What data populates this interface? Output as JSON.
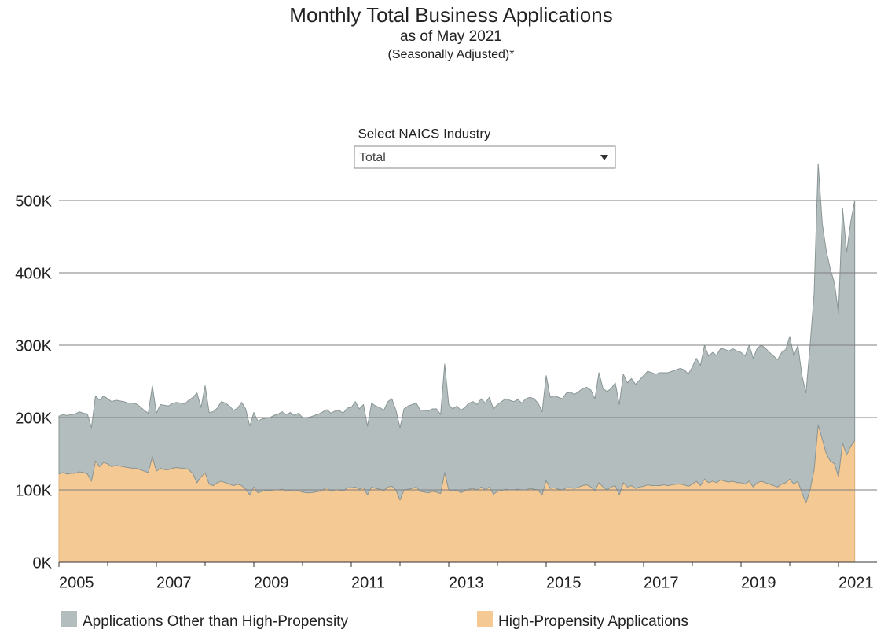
{
  "chart_data": {
    "type": "stacked_area",
    "title": "Monthly Total Business Applications",
    "subtitle": "as of May 2021",
    "note": "(Seasonally Adjusted)*",
    "filter_label": "Select NAICS Industry",
    "filter_value": "Total",
    "x": [
      2005,
      2005.083,
      2005.167,
      2005.25,
      2005.333,
      2005.417,
      2005.5,
      2005.583,
      2005.667,
      2005.75,
      2005.833,
      2005.917,
      2006,
      2006.083,
      2006.167,
      2006.25,
      2006.333,
      2006.417,
      2006.5,
      2006.583,
      2006.667,
      2006.75,
      2006.833,
      2006.917,
      2007,
      2007.083,
      2007.167,
      2007.25,
      2007.333,
      2007.417,
      2007.5,
      2007.583,
      2007.667,
      2007.75,
      2007.833,
      2007.917,
      2008,
      2008.083,
      2008.167,
      2008.25,
      2008.333,
      2008.417,
      2008.5,
      2008.583,
      2008.667,
      2008.75,
      2008.833,
      2008.917,
      2009,
      2009.083,
      2009.167,
      2009.25,
      2009.333,
      2009.417,
      2009.5,
      2009.583,
      2009.667,
      2009.75,
      2009.833,
      2009.917,
      2010,
      2010.083,
      2010.167,
      2010.25,
      2010.333,
      2010.417,
      2010.5,
      2010.583,
      2010.667,
      2010.75,
      2010.833,
      2010.917,
      2011,
      2011.083,
      2011.167,
      2011.25,
      2011.333,
      2011.417,
      2011.5,
      2011.583,
      2011.667,
      2011.75,
      2011.833,
      2011.917,
      2012,
      2012.083,
      2012.167,
      2012.25,
      2012.333,
      2012.417,
      2012.5,
      2012.583,
      2012.667,
      2012.75,
      2012.833,
      2012.917,
      2013,
      2013.083,
      2013.167,
      2013.25,
      2013.333,
      2013.417,
      2013.5,
      2013.583,
      2013.667,
      2013.75,
      2013.833,
      2013.917,
      2014,
      2014.083,
      2014.167,
      2014.25,
      2014.333,
      2014.417,
      2014.5,
      2014.583,
      2014.667,
      2014.75,
      2014.833,
      2014.917,
      2015,
      2015.083,
      2015.167,
      2015.25,
      2015.333,
      2015.417,
      2015.5,
      2015.583,
      2015.667,
      2015.75,
      2015.833,
      2015.917,
      2016,
      2016.083,
      2016.167,
      2016.25,
      2016.333,
      2016.417,
      2016.5,
      2016.583,
      2016.667,
      2016.75,
      2016.833,
      2016.917,
      2017,
      2017.083,
      2017.167,
      2017.25,
      2017.333,
      2017.417,
      2017.5,
      2017.583,
      2017.667,
      2017.75,
      2017.833,
      2017.917,
      2018,
      2018.083,
      2018.167,
      2018.25,
      2018.333,
      2018.417,
      2018.5,
      2018.583,
      2018.667,
      2018.75,
      2018.833,
      2018.917,
      2019,
      2019.083,
      2019.167,
      2019.25,
      2019.333,
      2019.417,
      2019.5,
      2019.583,
      2019.667,
      2019.75,
      2019.833,
      2019.917,
      2020,
      2020.083,
      2020.167,
      2020.25,
      2020.333,
      2020.417,
      2020.5,
      2020.583,
      2020.667,
      2020.75,
      2020.833,
      2020.917,
      2021,
      2021.083,
      2021.167,
      2021.25,
      2021.333
    ],
    "series": [
      {
        "name": "Applications Other than High-Propensity",
        "color": "#b3bdbd",
        "stroke": "#8a9595",
        "values": [
          80000,
          80000,
          81000,
          81000,
          82000,
          83000,
          82000,
          83000,
          74000,
          90000,
          92000,
          92000,
          90000,
          90000,
          90000,
          90000,
          90000,
          89000,
          90000,
          89000,
          87000,
          84000,
          82000,
          98000,
          80000,
          88000,
          89000,
          88000,
          90000,
          90000,
          90000,
          89000,
          96000,
          106000,
          124000,
          96000,
          120000,
          99000,
          102000,
          103000,
          110000,
          110000,
          108000,
          104000,
          105000,
          115000,
          111000,
          95000,
          103000,
          99000,
          100000,
          100000,
          101000,
          103000,
          105000,
          107000,
          106000,
          107000,
          105000,
          107000,
          103000,
          104000,
          105000,
          106000,
          107000,
          108000,
          108000,
          108000,
          109000,
          110000,
          108000,
          110000,
          111000,
          118000,
          111000,
          115000,
          95000,
          116000,
          114000,
          113000,
          111000,
          118000,
          121000,
          110000,
          100000,
          112000,
          115000,
          116000,
          116000,
          112000,
          113000,
          113000,
          114000,
          115000,
          109000,
          150000,
          118000,
          114000,
          116000,
          114000,
          115000,
          119000,
          120000,
          118000,
          122000,
          120000,
          124000,
          118000,
          120000,
          123000,
          125000,
          124000,
          122000,
          124000,
          120000,
          126000,
          126000,
          125000,
          120000,
          115000,
          145000,
          126000,
          127000,
          127000,
          126000,
          131000,
          132000,
          130000,
          132000,
          134000,
          135000,
          134000,
          127000,
          152000,
          136000,
          136000,
          136000,
          142000,
          125000,
          150000,
          144000,
          148000,
          144000,
          148000,
          153000,
          157000,
          156000,
          154000,
          156000,
          155000,
          156000,
          157000,
          158000,
          160000,
          159000,
          155000,
          162000,
          170000,
          166000,
          185000,
          175000,
          178000,
          176000,
          182000,
          182000,
          181000,
          183000,
          182000,
          180000,
          177000,
          188000,
          178000,
          186000,
          188000,
          186000,
          182000,
          179000,
          176000,
          182000,
          184000,
          197000,
          177000,
          188000,
          162000,
          152000,
          200000,
          244000,
          361000,
          298000,
          280000,
          265000,
          250000,
          226000,
          325000,
          280000,
          310000,
          332000
        ]
      },
      {
        "name": "High-Propensity Applications",
        "color": "#f5c993",
        "stroke": "#e0b27a",
        "values": [
          122000,
          124000,
          122000,
          123000,
          123000,
          125000,
          124000,
          122000,
          112000,
          140000,
          132000,
          138000,
          136000,
          132000,
          134000,
          133000,
          132000,
          131000,
          130000,
          130000,
          128000,
          126000,
          124000,
          146000,
          126000,
          130000,
          128000,
          128000,
          130000,
          131000,
          130000,
          130000,
          128000,
          122000,
          110000,
          118000,
          124000,
          108000,
          106000,
          110000,
          112000,
          110000,
          108000,
          106000,
          108000,
          106000,
          101000,
          93000,
          104000,
          96000,
          98000,
          99000,
          99000,
          100000,
          100000,
          101000,
          98000,
          100000,
          98000,
          99000,
          97000,
          96000,
          96000,
          97000,
          98000,
          100000,
          103000,
          98000,
          100000,
          100000,
          98000,
          103000,
          103000,
          104000,
          101000,
          103000,
          93000,
          104000,
          102000,
          101000,
          99000,
          104000,
          105000,
          100000,
          86000,
          100000,
          101000,
          102000,
          104000,
          98000,
          97000,
          96000,
          98000,
          97000,
          95000,
          124000,
          100000,
          98000,
          100000,
          96000,
          99000,
          101000,
          102000,
          100000,
          104000,
          100000,
          104000,
          94000,
          98000,
          99000,
          101000,
          100000,
          100000,
          101000,
          100000,
          100000,
          102000,
          101000,
          100000,
          93000,
          113000,
          102000,
          103000,
          101000,
          100000,
          103000,
          103000,
          102000,
          104000,
          106000,
          107000,
          104000,
          99000,
          110000,
          104000,
          100000,
          104000,
          106000,
          93000,
          110000,
          104000,
          106000,
          102000,
          104000,
          105000,
          107000,
          106000,
          106000,
          106000,
          107000,
          106000,
          107000,
          108000,
          108000,
          107000,
          105000,
          108000,
          112000,
          106000,
          115000,
          110000,
          112000,
          110000,
          114000,
          112000,
          111000,
          112000,
          110000,
          110000,
          108000,
          112000,
          104000,
          110000,
          112000,
          110000,
          108000,
          106000,
          104000,
          108000,
          110000,
          115000,
          108000,
          112000,
          96000,
          82000,
          100000,
          128000,
          190000,
          170000,
          150000,
          140000,
          136000,
          118000,
          165000,
          148000,
          160000,
          168000
        ]
      }
    ],
    "xlim": [
      2005,
      2021.79
    ],
    "xticks": [
      2005,
      2007,
      2009,
      2011,
      2013,
      2015,
      2017,
      2019,
      2021
    ],
    "xminorticks": [
      2006,
      2008,
      2010,
      2012,
      2014,
      2016,
      2018,
      2020
    ],
    "ylim": [
      0,
      575000
    ],
    "yticks": [
      {
        "value": 0,
        "label": "0K"
      },
      {
        "value": 100000,
        "label": "100K"
      },
      {
        "value": 200000,
        "label": "200K"
      },
      {
        "value": 300000,
        "label": "300K"
      },
      {
        "value": 400000,
        "label": "400K"
      },
      {
        "value": 500000,
        "label": "500K"
      }
    ],
    "grid": true
  }
}
